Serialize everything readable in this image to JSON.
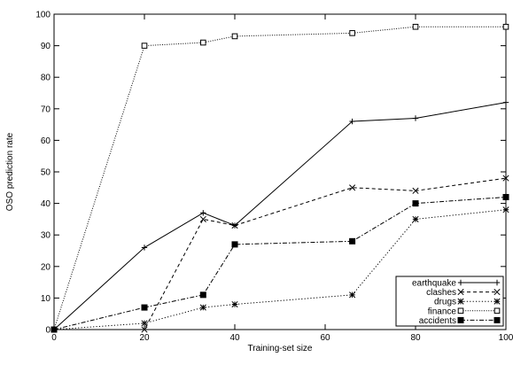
{
  "chart_data": {
    "type": "line",
    "xlabel": "Training-set size",
    "ylabel": "OSO prediction rate",
    "xlim": [
      0,
      100
    ],
    "ylim": [
      0,
      100
    ],
    "x_ticks": [
      "0",
      "20",
      "40",
      "60",
      "80",
      "100"
    ],
    "y_ticks": [
      "0",
      "10",
      "20",
      "30",
      "40",
      "50",
      "60",
      "70",
      "80",
      "90",
      "100"
    ],
    "grid": false,
    "legend_position": "bottom-right",
    "series": [
      {
        "name": "earthquake",
        "marker": "plus",
        "line_style": "solid",
        "x": [
          0,
          20,
          33,
          40,
          66,
          80,
          100
        ],
        "y": [
          0,
          26,
          37,
          33,
          66,
          67,
          72
        ]
      },
      {
        "name": "clashes",
        "marker": "cross",
        "line_style": "dashed",
        "x": [
          0,
          20,
          33,
          40,
          66,
          80,
          100
        ],
        "y": [
          0,
          0,
          35,
          33,
          45,
          44,
          48
        ]
      },
      {
        "name": "drugs",
        "marker": "star",
        "line_style": "dotted",
        "x": [
          0,
          20,
          33,
          40,
          66,
          80,
          100
        ],
        "y": [
          0,
          2,
          7,
          8,
          11,
          35,
          38
        ]
      },
      {
        "name": "finance",
        "marker": "open-square",
        "line_style": "dense-dotted",
        "x": [
          0,
          20,
          33,
          40,
          66,
          80,
          100
        ],
        "y": [
          0,
          90,
          91,
          93,
          94,
          96,
          96
        ]
      },
      {
        "name": "accidents",
        "marker": "filled-square",
        "line_style": "dash-dot",
        "x": [
          0,
          20,
          33,
          40,
          66,
          80,
          100
        ],
        "y": [
          0,
          7,
          11,
          27,
          28,
          40,
          42
        ]
      }
    ]
  }
}
